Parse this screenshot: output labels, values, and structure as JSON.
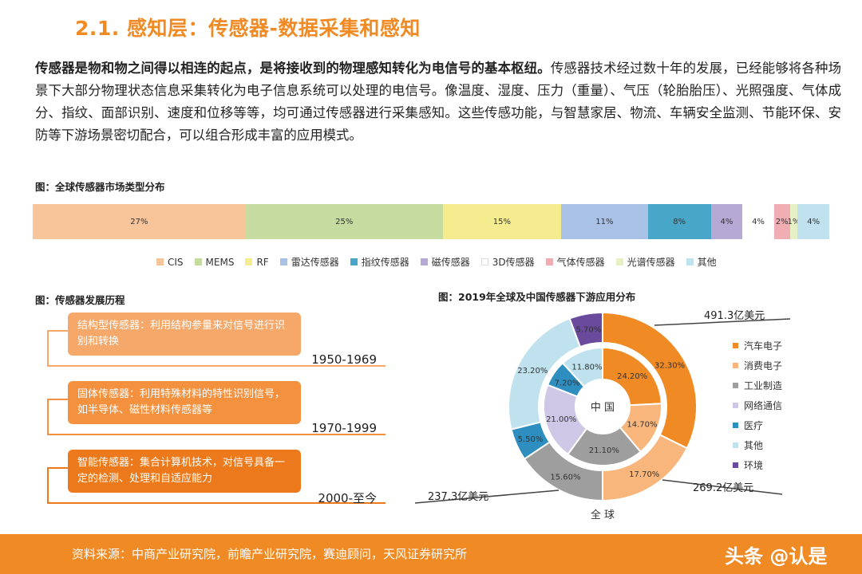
{
  "title": "2.1. 感知层：传感器-数据采集和感知",
  "intro": {
    "bold": "传感器是物和物之间得以相连的起点，是将接收到的物理感知转化为电信号的基本枢纽。",
    "rest": "传感器技术经过数十年的发展，已经能够将各种场景下大部分物理状态信息采集转化为电子信息系统可以处理的电信号。像温度、湿度、压力（重量）、气压（轮胎胎压）、光照强度、气体成分、指纹、面部识别、速度和位移等等，均可通过传感器进行采集感知。这些传感功能，与智慧家居、物流、车辆安全监测、节能环保、安防等下游场景密切配合，可以组合形成丰富的应用模式。"
  },
  "figure1": {
    "caption": "图：全球传感器市场类型分布"
  },
  "figure2": {
    "caption": "图：传感器发展历程",
    "stages": [
      {
        "text": "结构型传感器：利用结构参量来对信号进行识别和转换",
        "years": "1950-1969",
        "color": "#f5a86a"
      },
      {
        "text": "固体传感器：利用特殊材料的特性识别信号，如半导体、磁性材料传感器等",
        "years": "1970-1999",
        "color": "#f4913f"
      },
      {
        "text": "智能传感器：集合计算机技术，对信号具备一定的检测、处理和自适应能力",
        "years": "2000-至今",
        "color": "#ec7a1c"
      }
    ]
  },
  "figure3": {
    "caption": "图：2019年全球及中国传感器下游应用分布",
    "inner_label": "中 国",
    "outer_label": "全 球",
    "callouts": [
      "491.3亿美元",
      "237.3亿美元",
      "269.2亿美元"
    ]
  },
  "footer": {
    "source": "资料来源：中商产业研究院，前瞻产业研究院，赛迪顾问，天风证券研究所",
    "watermark": "头条 @认是"
  },
  "chart_data": [
    {
      "type": "bar",
      "title": "图：全球传感器市场类型分布",
      "stacked": true,
      "orientation": "horizontal",
      "series": [
        {
          "name": "CIS",
          "value": 27,
          "label": "27%",
          "color": "#f8c49a"
        },
        {
          "name": "MEMS",
          "value": 25,
          "label": "25%",
          "color": "#c5dba0"
        },
        {
          "name": "RF",
          "value": 15,
          "label": "15%",
          "color": "#f4ec8e"
        },
        {
          "name": "雷达传感器",
          "value": 11,
          "label": "11%",
          "color": "#a9c1e4"
        },
        {
          "name": "指纹传感器",
          "value": 8,
          "label": "8%",
          "color": "#48a6c8"
        },
        {
          "name": "磁传感器",
          "value": 4,
          "label": "4%",
          "color": "#b6a9d6"
        },
        {
          "name": "3D传感器",
          "value": 4,
          "label": "4%",
          "color": "#ffffff"
        },
        {
          "name": "气体传感器",
          "value": 2,
          "label": "2%",
          "color": "#f0aeb4"
        },
        {
          "name": "光谱传感器",
          "value": 1,
          "label": "1%",
          "color": "#e7efc4"
        },
        {
          "name": "其他",
          "value": 4,
          "label": "4%",
          "color": "#bfe2ee"
        }
      ],
      "legend": "bottom"
    },
    {
      "type": "pie",
      "title": "图：2019年全球及中国传感器下游应用分布",
      "donut": true,
      "categories": [
        "汽车电子",
        "消费电子",
        "工业制造",
        "网络通信",
        "医疗",
        "其他",
        "环境"
      ],
      "colors": [
        "#f08a24",
        "#f8b67c",
        "#9e9e9e",
        "#cfc7e6",
        "#2e8ebf",
        "#bfe2ee",
        "#6a4a9c"
      ],
      "series": [
        {
          "name": "全 球",
          "values": [
            32.3,
            17.7,
            15.6,
            0,
            5.5,
            23.2,
            5.7
          ],
          "labels": [
            "32.30%",
            "17.70%",
            "15.60%",
            "",
            "5.50%",
            "23.20%",
            "5.70%"
          ]
        },
        {
          "name": "中 国",
          "values": [
            24.2,
            14.7,
            21.1,
            21.0,
            7.2,
            11.8,
            0
          ],
          "labels": [
            "24.20%",
            "14.70%",
            "21.10%",
            "21.00%",
            "7.20%",
            "11.80%",
            ""
          ]
        }
      ],
      "legend": "right"
    }
  ]
}
